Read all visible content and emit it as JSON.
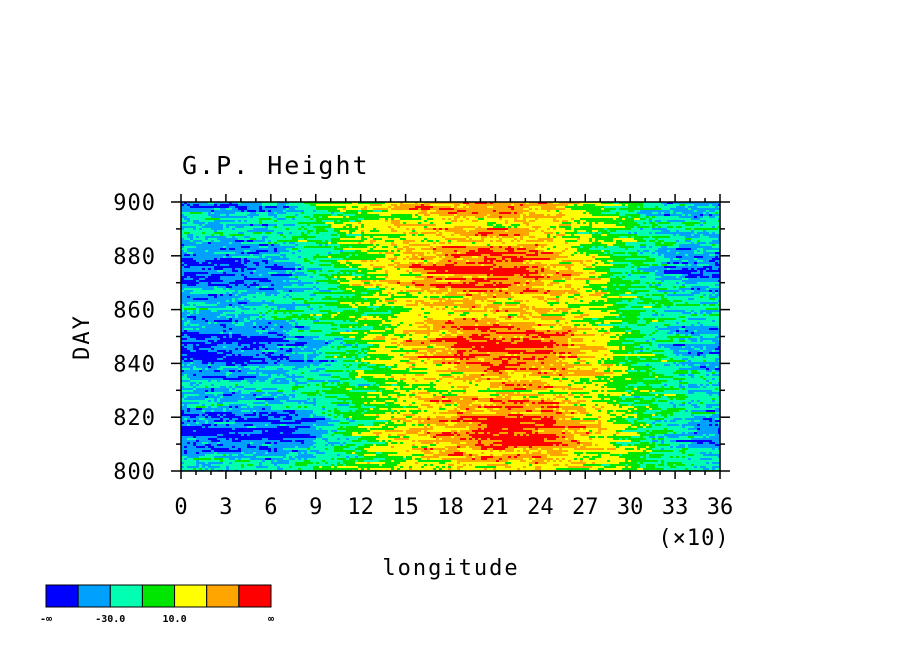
{
  "chart_data": {
    "type": "heatmap",
    "title": "G.P. Height",
    "xlabel": "longitude",
    "ylabel": "DAY",
    "x_multiplier_label": "(×10)",
    "xlim": [
      0,
      36
    ],
    "ylim": [
      800,
      900
    ],
    "x_ticks": [
      "0",
      "3",
      "6",
      "9",
      "12",
      "15",
      "18",
      "21",
      "24",
      "27",
      "30",
      "33",
      "36"
    ],
    "y_ticks": [
      "800",
      "820",
      "840",
      "860",
      "880",
      "900"
    ],
    "colorbar": {
      "colors": [
        "#0000ff",
        "#00a0ff",
        "#00ffb0",
        "#00e600",
        "#ffff00",
        "#ffa500",
        "#ff0000"
      ],
      "labels": [
        "-∞",
        "-30.0",
        "10.0",
        "∞"
      ]
    },
    "band_profile": {
      "x": [
        0,
        3,
        6,
        8,
        10,
        12,
        15,
        18,
        21,
        24,
        27,
        30,
        33,
        36
      ],
      "level_index": [
        0.4,
        0.3,
        0.5,
        1.2,
        2.2,
        3.3,
        4.5,
        5.5,
        6.0,
        5.5,
        4.3,
        2.6,
        1.3,
        0.7
      ]
    },
    "day_shift_keypoints": {
      "day": [
        800,
        820,
        840,
        860,
        880,
        900
      ],
      "shift_x": [
        0.5,
        1.0,
        0.8,
        0.0,
        -0.5,
        -0.8
      ]
    }
  }
}
